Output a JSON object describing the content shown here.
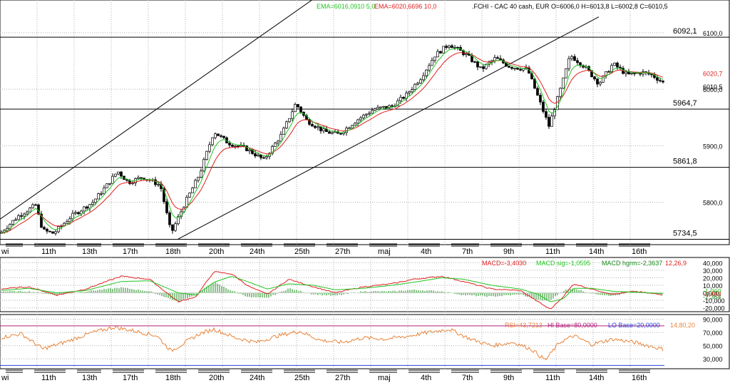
{
  "header": {
    "ema_fast": "EMA=6016,0910  5,0",
    "ema_slow": "EMA=6020,6696  10,0",
    "instrument": ".FCHI - CAC 40 cash, EUR O=6006,0 H=6013,8 L=6002,8 C=6010,5",
    "ema_fast_color": "#22c422",
    "ema_slow_color": "#e02020"
  },
  "macd_header": {
    "macd": "MACD=-3,4030",
    "signal": "MACD sig=-1,0595",
    "histogram": "MACD hgrm=-2,3637",
    "params": "12,26,9",
    "macd_color": "#e02020",
    "signal_color": "#22c422",
    "hist_color": "#1a8a1a"
  },
  "rsi_header": {
    "rsi": "RSI=43,7213",
    "hi_base": "HI Base=80,0000",
    "lo_base": "LO Base=20,0000",
    "params": "14,80,20",
    "rsi_color": "#e8843a",
    "hi_color": "#b0207a",
    "lo_color": "#2040e0"
  },
  "chart_data": [
    {
      "type": "candlestick",
      "title": "",
      "x_labels": [
        "wi",
        "11th",
        "13th",
        "17th",
        "18th",
        "20th",
        "24th",
        "25th",
        "27th",
        "maj",
        "4th",
        "7th",
        "9th",
        "11th",
        "14th",
        "16th"
      ],
      "y_ticks": [
        5800.0,
        5900.0,
        6000.0,
        6100.0
      ],
      "y_tick_labels": [
        "5800,0",
        "5900,0",
        "6000,0",
        "6100,0"
      ],
      "ylim": [
        5725,
        6120
      ],
      "horizontal_levels": [
        {
          "label": "6092,1",
          "value": 6092.1
        },
        {
          "label": "5964,7",
          "value": 5964.7
        },
        {
          "label": "5861,8",
          "value": 5861.8
        },
        {
          "label": "5734,5",
          "value": 5734.5
        }
      ],
      "last_price_labels": [
        {
          "label": "6020,7",
          "value": 6020.7,
          "color": "#e02020"
        },
        {
          "label": "6010,5",
          "value": 6010.5,
          "color": "#000000"
        }
      ],
      "price_path": [
        [
          0,
          5745
        ],
        [
          25,
          5775
        ],
        [
          50,
          5795
        ],
        [
          60,
          5750
        ],
        [
          75,
          5745
        ],
        [
          100,
          5775
        ],
        [
          130,
          5800
        ],
        [
          150,
          5830
        ],
        [
          165,
          5855
        ],
        [
          180,
          5835
        ],
        [
          200,
          5845
        ],
        [
          225,
          5830
        ],
        [
          240,
          5745
        ],
        [
          260,
          5800
        ],
        [
          280,
          5850
        ],
        [
          300,
          5925
        ],
        [
          320,
          5905
        ],
        [
          345,
          5895
        ],
        [
          370,
          5875
        ],
        [
          395,
          5920
        ],
        [
          415,
          5975
        ],
        [
          430,
          5945
        ],
        [
          455,
          5925
        ],
        [
          475,
          5920
        ],
        [
          500,
          5945
        ],
        [
          525,
          5965
        ],
        [
          550,
          5970
        ],
        [
          570,
          5990
        ],
        [
          590,
          6020
        ],
        [
          610,
          6060
        ],
        [
          630,
          6080
        ],
        [
          655,
          6060
        ],
        [
          675,
          6035
        ],
        [
          695,
          6055
        ],
        [
          715,
          6040
        ],
        [
          740,
          6035
        ],
        [
          755,
          5985
        ],
        [
          770,
          5935
        ],
        [
          785,
          5995
        ],
        [
          800,
          6060
        ],
        [
          820,
          6040
        ],
        [
          840,
          6010
        ],
        [
          860,
          6045
        ],
        [
          880,
          6025
        ],
        [
          900,
          6030
        ],
        [
          915,
          6025
        ],
        [
          932,
          6010
        ]
      ],
      "trend_lines": [
        {
          "from": [
            0,
            5770
          ],
          "to": [
            440,
            6160
          ]
        },
        {
          "from": [
            250,
            5735
          ],
          "to": [
            840,
            6128
          ]
        }
      ]
    },
    {
      "type": "line",
      "title": "",
      "y_ticks": [
        -20,
        -10,
        0,
        10,
        20,
        30,
        40
      ],
      "y_tick_labels": [
        "-20,000",
        "-10,000",
        "0,000",
        "10,000",
        "20,000",
        "30,000",
        "40,000"
      ],
      "last_value_labels": [
        "-1,060",
        "-3,403",
        "-2,364"
      ],
      "ylim": [
        -25,
        45
      ],
      "macd_path": [
        [
          0,
          5
        ],
        [
          40,
          8
        ],
        [
          80,
          -3
        ],
        [
          120,
          5
        ],
        [
          170,
          22
        ],
        [
          210,
          18
        ],
        [
          250,
          -12
        ],
        [
          275,
          -5
        ],
        [
          300,
          28
        ],
        [
          325,
          25
        ],
        [
          350,
          8
        ],
        [
          375,
          -2
        ],
        [
          405,
          18
        ],
        [
          440,
          8
        ],
        [
          470,
          0
        ],
        [
          510,
          8
        ],
        [
          550,
          12
        ],
        [
          580,
          18
        ],
        [
          620,
          22
        ],
        [
          650,
          15
        ],
        [
          690,
          5
        ],
        [
          730,
          3
        ],
        [
          755,
          -12
        ],
        [
          772,
          -22
        ],
        [
          790,
          -5
        ],
        [
          805,
          12
        ],
        [
          830,
          5
        ],
        [
          860,
          -2
        ],
        [
          890,
          2
        ],
        [
          932,
          -3
        ]
      ],
      "signal_path": [
        [
          0,
          3
        ],
        [
          40,
          6
        ],
        [
          80,
          0
        ],
        [
          120,
          3
        ],
        [
          170,
          15
        ],
        [
          210,
          16
        ],
        [
          250,
          0
        ],
        [
          275,
          -3
        ],
        [
          300,
          14
        ],
        [
          325,
          22
        ],
        [
          350,
          14
        ],
        [
          375,
          5
        ],
        [
          405,
          12
        ],
        [
          440,
          10
        ],
        [
          470,
          4
        ],
        [
          510,
          6
        ],
        [
          550,
          10
        ],
        [
          580,
          14
        ],
        [
          620,
          20
        ],
        [
          650,
          18
        ],
        [
          690,
          10
        ],
        [
          730,
          5
        ],
        [
          755,
          -2
        ],
        [
          772,
          -12
        ],
        [
          790,
          -8
        ],
        [
          805,
          6
        ],
        [
          830,
          6
        ],
        [
          860,
          2
        ],
        [
          890,
          1
        ],
        [
          932,
          -1
        ]
      ]
    },
    {
      "type": "line",
      "title": "",
      "y_ticks": [
        30,
        50,
        70,
        90
      ],
      "y_tick_labels": [
        "30,000",
        "50,000",
        "70,000",
        "90,000"
      ],
      "ylim": [
        15,
        95
      ],
      "hi_base": 80,
      "lo_base": 20,
      "rsi_path": [
        [
          0,
          62
        ],
        [
          30,
          68
        ],
        [
          60,
          45
        ],
        [
          90,
          55
        ],
        [
          130,
          70
        ],
        [
          160,
          78
        ],
        [
          190,
          72
        ],
        [
          220,
          65
        ],
        [
          240,
          42
        ],
        [
          260,
          55
        ],
        [
          280,
          68
        ],
        [
          300,
          75
        ],
        [
          330,
          62
        ],
        [
          360,
          55
        ],
        [
          390,
          65
        ],
        [
          420,
          72
        ],
        [
          450,
          58
        ],
        [
          480,
          55
        ],
        [
          510,
          62
        ],
        [
          540,
          60
        ],
        [
          570,
          64
        ],
        [
          600,
          70
        ],
        [
          630,
          75
        ],
        [
          660,
          60
        ],
        [
          690,
          50
        ],
        [
          720,
          55
        ],
        [
          745,
          45
        ],
        [
          765,
          28
        ],
        [
          785,
          55
        ],
        [
          805,
          65
        ],
        [
          830,
          52
        ],
        [
          860,
          60
        ],
        [
          890,
          55
        ],
        [
          932,
          44
        ]
      ]
    }
  ]
}
